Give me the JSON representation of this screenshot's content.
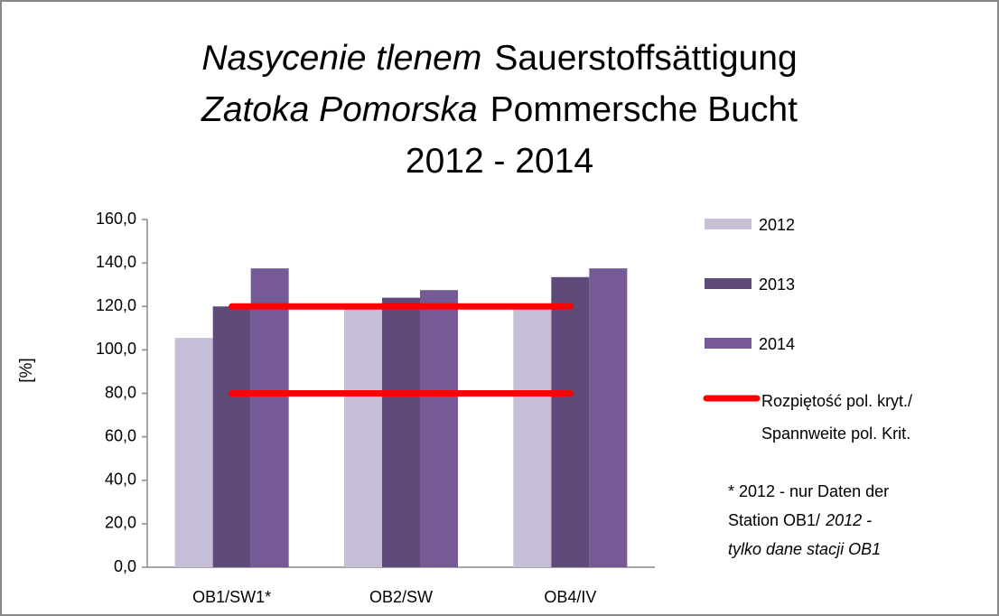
{
  "chart_data": {
    "type": "bar",
    "title": [
      [
        "Nasycenie tlenem",
        "Sauerstoffsättigung"
      ],
      [
        "Zatoka Pomorska",
        "Pommersche Bucht"
      ],
      [
        "2012 - 2014"
      ]
    ],
    "ylabel": "[%]",
    "categories": [
      "OB1/SW1*",
      "OB2/SW",
      "OB4/IV"
    ],
    "series": [
      {
        "name": "2012",
        "color": "#c6bed6",
        "values": [
          105.5,
          120,
          120
        ]
      },
      {
        "name": "2013",
        "color": "#5f4a7a",
        "values": [
          120,
          124,
          133.5
        ]
      },
      {
        "name": "2014",
        "color": "#765a96",
        "values": [
          137.5,
          127.5,
          137.5
        ]
      }
    ],
    "range": {
      "name": [
        "Rozpiętość pol. kryt./",
        "Spannweite pol. Krit."
      ],
      "color": "#ff0000",
      "high": [
        120,
        120,
        120
      ],
      "low": [
        80,
        80,
        80
      ]
    },
    "ylim": [
      0,
      160
    ],
    "yticks": [
      {
        "value": 0,
        "label": "0,0"
      },
      {
        "value": 20,
        "label": "20,0"
      },
      {
        "value": 40,
        "label": "40,0"
      },
      {
        "value": 60,
        "label": "60,0"
      },
      {
        "value": 80,
        "label": "80,0"
      },
      {
        "value": 100,
        "label": "100,0"
      },
      {
        "value": 120,
        "label": "120,0"
      },
      {
        "value": 140,
        "label": "140,0"
      },
      {
        "value": 160,
        "label": "160,0"
      }
    ],
    "grid": false,
    "note": [
      [
        "* 2012 - nur Daten der"
      ],
      [
        "Station OB1/",
        "2012 -"
      ],
      [
        "tylko dane stacji OB1"
      ]
    ]
  }
}
